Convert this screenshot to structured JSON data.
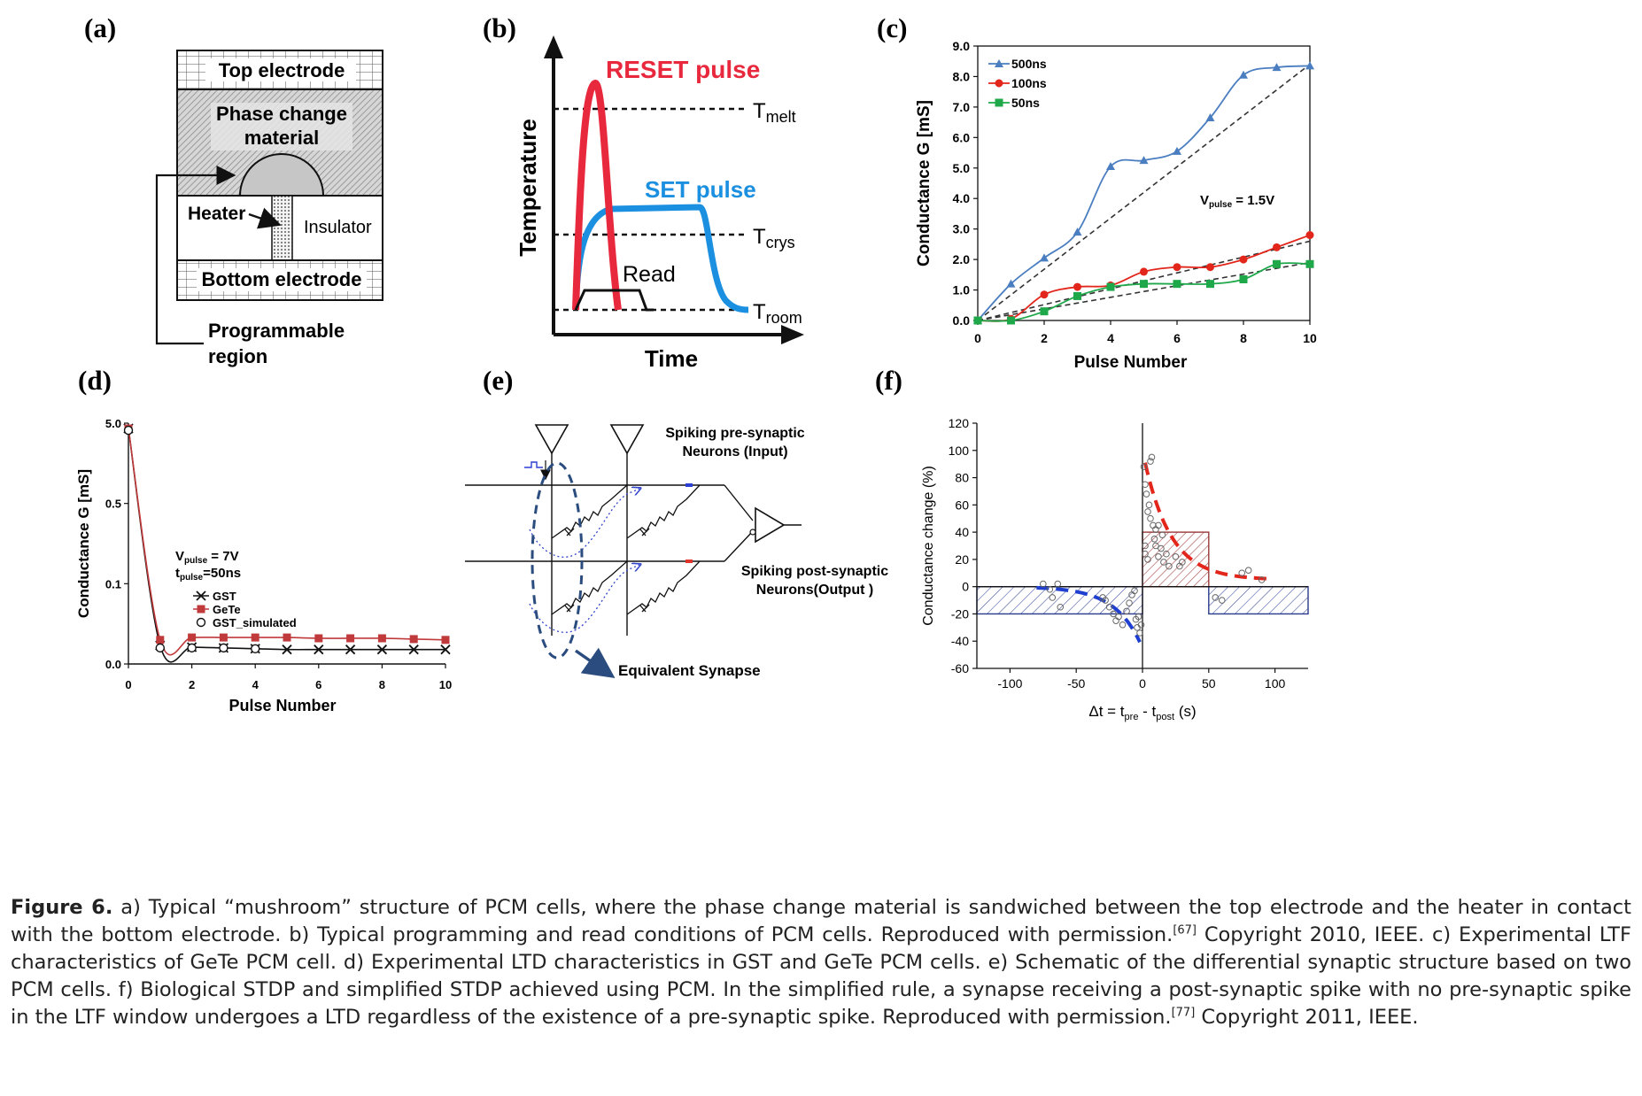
{
  "panels": {
    "a": {
      "label": "(a)",
      "top_electrode": "Top electrode",
      "pcm_line1": "Phase change",
      "pcm_line2": "material",
      "heater": "Heater",
      "insulator": "Insulator",
      "bottom_electrode": "Bottom electrode",
      "prog_line1": "Programmable",
      "prog_line2": "region"
    },
    "b": {
      "label": "(b)",
      "ylabel": "Temperature",
      "xlabel": "Time",
      "reset": "RESET pulse",
      "set": "SET pulse",
      "read": "Read",
      "t_melt": "T",
      "t_melt_sub": "melt",
      "t_crys": "T",
      "t_crys_sub": "crys",
      "t_room": "T",
      "t_room_sub": "room",
      "colors": {
        "reset": "#e8283c",
        "set": "#1b8fe0"
      }
    },
    "c": {
      "label": "(c)",
      "annotation_main": "V",
      "annotation_sub": "pulse",
      "annotation_tail": " = 1.5V"
    },
    "d": {
      "label": "(d)",
      "ann1_main": "V",
      "ann1_sub": "pulse",
      "ann1_tail": " = 7V",
      "ann2_main": "t",
      "ann2_sub": "pulse",
      "ann2_tail": "=50ns"
    },
    "e": {
      "label": "(e)",
      "pre_line1": "Spiking pre-synaptic",
      "pre_line2": "Neurons (Input)",
      "post_line1": "Spiking post-synaptic",
      "post_line2": "Neurons(Output )",
      "equiv": "Equivalent Synapse"
    },
    "f": {
      "label": "(f)"
    }
  },
  "chart_data": [
    {
      "panel": "c",
      "type": "line",
      "xlabel": "Pulse Number",
      "ylabel": "Conductance G [mS]",
      "xlim": [
        0,
        10
      ],
      "ylim": [
        0,
        9
      ],
      "xticks": [
        "0",
        "2",
        "4",
        "6",
        "8",
        "10"
      ],
      "yticks": [
        "0.0",
        "1.0",
        "2.0",
        "3.0",
        "4.0",
        "5.0",
        "6.0",
        "7.0",
        "8.0",
        "9.0"
      ],
      "legend_position": "top-left",
      "x": [
        0,
        1,
        2,
        3,
        4,
        5,
        6,
        7,
        8,
        9,
        10
      ],
      "series": [
        {
          "name": "500ns",
          "color": "#4a7ec0",
          "marker": "triangle",
          "values": [
            0,
            1.2,
            2.05,
            2.9,
            5.05,
            5.25,
            5.55,
            6.65,
            8.05,
            8.3,
            8.35
          ]
        },
        {
          "name": "100ns",
          "color": "#e3261c",
          "marker": "circle",
          "values": [
            0,
            0.05,
            0.85,
            1.1,
            1.15,
            1.6,
            1.75,
            1.75,
            2.0,
            2.4,
            2.8
          ]
        },
        {
          "name": "50ns",
          "color": "#1fa84a",
          "marker": "square",
          "values": [
            0,
            0.0,
            0.3,
            0.8,
            1.1,
            1.2,
            1.2,
            1.2,
            1.35,
            1.85,
            1.85
          ]
        }
      ],
      "fit_lines": [
        {
          "x": [
            0,
            10
          ],
          "y": [
            0,
            8.4
          ]
        },
        {
          "x": [
            0,
            10
          ],
          "y": [
            0,
            2.6
          ]
        },
        {
          "x": [
            0,
            10
          ],
          "y": [
            0,
            1.9
          ]
        }
      ],
      "fit_color": "#333333"
    },
    {
      "panel": "d",
      "type": "line",
      "xlabel": "Pulse Number",
      "ylabel": "Conductance G [mS]",
      "xlim": [
        0,
        10
      ],
      "yticks": [
        "0.0",
        "0.1",
        "0.5",
        "5.0"
      ],
      "xticks": [
        "0",
        "2",
        "4",
        "6",
        "8",
        "10"
      ],
      "legend_position": "center",
      "x": [
        0,
        1,
        2,
        3,
        4,
        5,
        6,
        7,
        8,
        9,
        10
      ],
      "series": [
        {
          "name": "GST",
          "color": "#111111",
          "marker": "x",
          "values": [
            4.7,
            0.023,
            0.021,
            0.02,
            0.019,
            0.018,
            0.018,
            0.018,
            0.018,
            0.018,
            0.018
          ]
        },
        {
          "name": "GeTe",
          "color": "#c0393b",
          "marker": "square",
          "values": [
            4.7,
            0.03,
            0.033,
            0.033,
            0.033,
            0.033,
            0.032,
            0.032,
            0.032,
            0.031,
            0.03
          ]
        },
        {
          "name": "GST_simulated",
          "color": "#111111",
          "marker": "open-circle",
          "values": [
            4.6,
            0.02,
            0.02,
            0.02,
            0.019,
            null,
            null,
            null,
            null,
            null,
            null
          ]
        }
      ]
    },
    {
      "panel": "f",
      "type": "scatter",
      "xlabel_main": "Δt = t",
      "xlabel_sub1": "pre",
      "xlabel_mid": " - t",
      "xlabel_sub2": "post",
      "xlabel_tail": " (s)",
      "ylabel": "Conductance change (%)",
      "xlim": [
        -125,
        125
      ],
      "ylim": [
        -60,
        120
      ],
      "xticks": [
        "-100",
        "-50",
        "0",
        "50",
        "100"
      ],
      "yticks": [
        "-60",
        "-40",
        "-20",
        "0",
        "20",
        "40",
        "60",
        "80",
        "100",
        "120"
      ],
      "ltp_box": {
        "x": [
          0,
          50
        ],
        "value": 40,
        "color": "#9a3a3a"
      },
      "ltd_box": {
        "x": [
          -125,
          125
        ],
        "value": -20,
        "color": "#2a3a8c"
      },
      "ltp_fit_color": "#e3261c",
      "ltd_fit_color": "#1e3fd0",
      "points": [
        [
          -75,
          2
        ],
        [
          -70,
          -2
        ],
        [
          -68,
          -8
        ],
        [
          -64,
          2
        ],
        [
          -62,
          -15
        ],
        [
          -30,
          -8
        ],
        [
          -28,
          -10
        ],
        [
          -25,
          -15
        ],
        [
          -22,
          -20
        ],
        [
          -20,
          -25
        ],
        [
          -18,
          -22
        ],
        [
          -15,
          -28
        ],
        [
          -12,
          -18
        ],
        [
          -10,
          -12
        ],
        [
          -8,
          -6
        ],
        [
          -6,
          -3
        ],
        [
          -5,
          -24
        ],
        [
          -4,
          -30
        ],
        [
          -3,
          -22
        ],
        [
          -2,
          -34
        ],
        [
          -1,
          -28
        ],
        [
          1,
          88
        ],
        [
          2,
          75
        ],
        [
          3,
          68
        ],
        [
          4,
          55
        ],
        [
          5,
          60
        ],
        [
          6,
          50
        ],
        [
          8,
          45
        ],
        [
          9,
          35
        ],
        [
          10,
          30
        ],
        [
          12,
          22
        ],
        [
          14,
          28
        ],
        [
          15,
          38
        ],
        [
          16,
          18
        ],
        [
          18,
          24
        ],
        [
          20,
          15
        ],
        [
          2,
          24
        ],
        [
          4,
          20
        ],
        [
          6,
          92
        ],
        [
          7,
          95
        ],
        [
          10,
          42
        ],
        [
          12,
          45
        ],
        [
          25,
          22
        ],
        [
          28,
          15
        ],
        [
          30,
          18
        ],
        [
          55,
          -8
        ],
        [
          60,
          -10
        ],
        [
          75,
          10
        ],
        [
          80,
          12
        ],
        [
          90,
          5
        ],
        [
          2,
          30
        ]
      ]
    }
  ],
  "caption": {
    "fig_label": "Figure 6.",
    "part1": " a) Typical “mushroom” structure of PCM cells, where the phase change material is sandwiched between the top electrode and the heater in contact with the bottom electrode. b) Typical programming and read conditions of PCM cells. Reproduced with permission.",
    "ref1": "[67]",
    "part2": " Copyright 2010, IEEE. c) Experimental LTF characteristics of GeTe PCM cell. d) Experimental LTD characteristics in GST and GeTe PCM cells. e) Schematic of the differential synaptic structure based on two PCM cells. f) Biological STDP and simplified STDP achieved using PCM. In the simplified rule, a synapse receiving a post-synaptic spike with no pre-synaptic spike in the LTF window undergoes a LTD regardless of the existence of a pre-synaptic spike. Reproduced with permission.",
    "ref2": "[77]",
    "part3": " Copyright 2011, IEEE."
  }
}
